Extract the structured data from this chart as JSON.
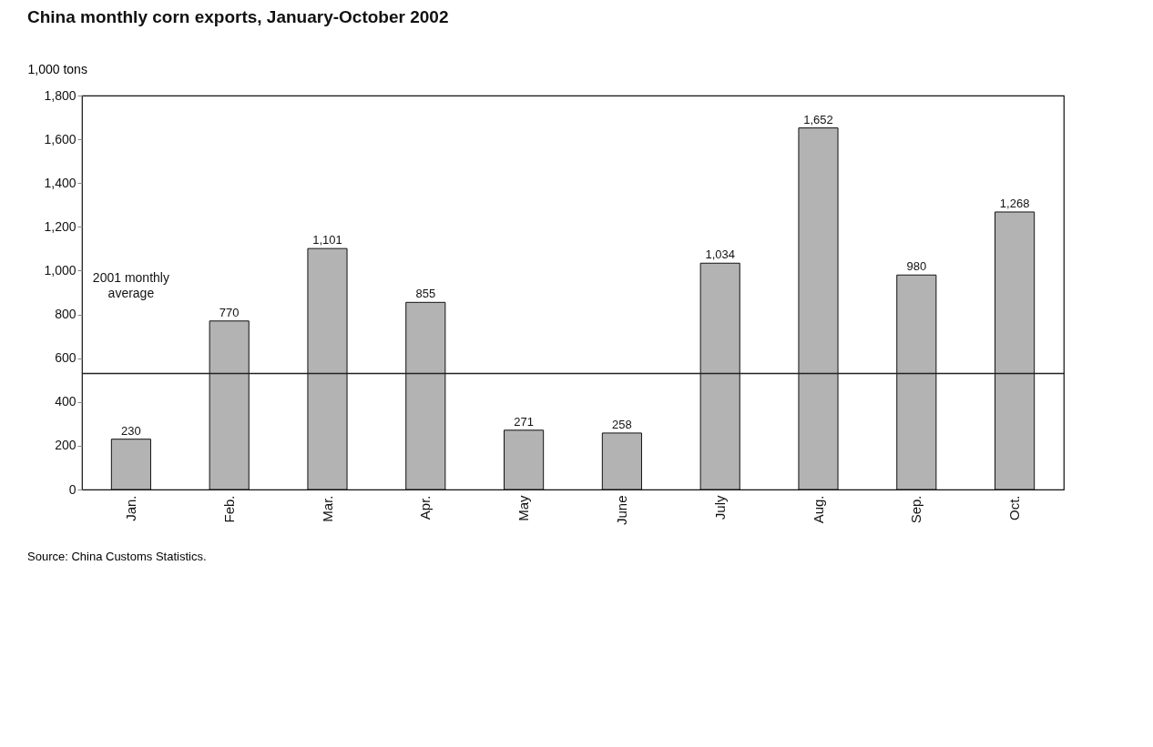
{
  "chart_data": {
    "type": "bar",
    "title": "China monthly corn exports, January-October 2002",
    "ylabel": "1,000 tons",
    "categories": [
      "Jan.",
      "Feb.",
      "Mar.",
      "Apr.",
      "May",
      "June",
      "July",
      "Aug.",
      "Sep.",
      "Oct."
    ],
    "values": [
      230,
      770,
      1101,
      855,
      271,
      258,
      1034,
      1652,
      980,
      1268
    ],
    "value_labels": [
      "230",
      "770",
      "1,101",
      "855",
      "271",
      "258",
      "1,034",
      "1,652",
      "980",
      "1,268"
    ],
    "color": "#b3b3b3",
    "ylim": [
      0,
      1800
    ],
    "yticks": [
      0,
      {
        "value": 200,
        "label": "200"
      },
      {
        "value": 400,
        "label": "400"
      },
      {
        "value": 600,
        "label": "600"
      },
      {
        "value": 800,
        "label": "800"
      },
      {
        "value": 1000,
        "label": "1,000"
      },
      {
        "value": 1200,
        "label": "1,200"
      },
      {
        "value": 1400,
        "label": "1,400"
      },
      {
        "value": 1600,
        "label": "1,600"
      },
      {
        "value": 1800,
        "label": "1,800"
      }
    ],
    "grid": false,
    "ref_lines": [
      {
        "axis": "y",
        "value": 530,
        "label": "2001 monthly average",
        "color": "#222222"
      }
    ],
    "annotations": [
      "Source: China Customs Statistics."
    ]
  }
}
